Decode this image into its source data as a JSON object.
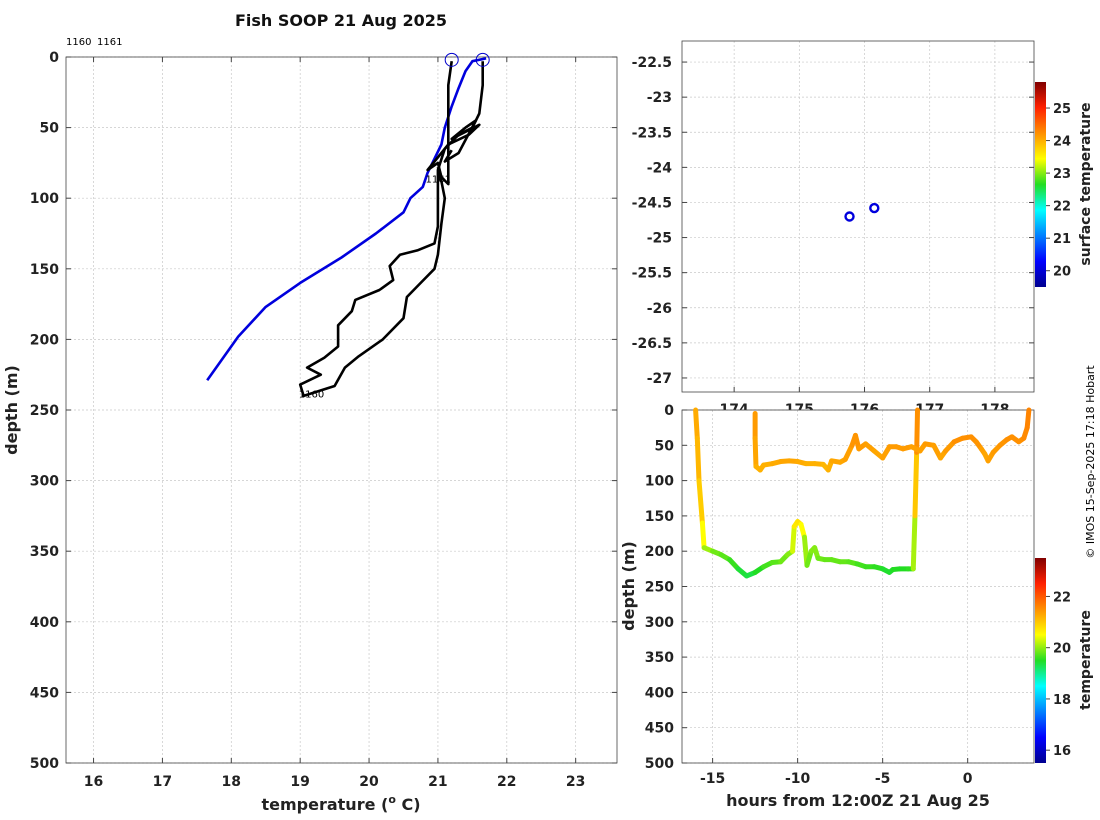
{
  "title": "Fish SOOP 21 Aug 2025",
  "credit": "© IMOS 15-Sep-2025 17:18 Hobart",
  "chart_data": [
    {
      "id": "profiles",
      "type": "line",
      "xlabel": "temperature (°C)",
      "xlabel_main": "temperature (",
      "xlabel_sup": "o",
      "xlabel_tail": " C)",
      "ylabel": "depth (m)",
      "xlim": [
        15.6,
        23.6
      ],
      "ylim": [
        500,
        0
      ],
      "xticks": [
        16,
        17,
        18,
        19,
        20,
        21,
        22,
        23
      ],
      "yticks": [
        0,
        50,
        100,
        150,
        200,
        250,
        300,
        350,
        400,
        450,
        500
      ],
      "top_labels": [
        "1160",
        "1161"
      ],
      "grid": true,
      "series": [
        {
          "id": "ref",
          "color": "#0000dd",
          "points": [
            [
              21.7,
              1
            ],
            [
              21.5,
              3
            ],
            [
              21.4,
              10
            ],
            [
              21.3,
              22
            ],
            [
              21.2,
              35
            ],
            [
              21.1,
              50
            ],
            [
              21.05,
              62
            ],
            [
              20.95,
              72
            ],
            [
              20.85,
              82
            ],
            [
              20.78,
              92
            ],
            [
              20.6,
              100
            ],
            [
              20.5,
              110
            ],
            [
              20.1,
              125
            ],
            [
              19.6,
              142
            ],
            [
              19.0,
              160
            ],
            [
              18.5,
              177
            ],
            [
              18.1,
              198
            ],
            [
              17.65,
              229
            ]
          ]
        },
        {
          "id": "p1160",
          "color": "#000000",
          "label": "1160",
          "points": [
            [
              21.65,
              3
            ],
            [
              21.65,
              20
            ],
            [
              21.6,
              40
            ],
            [
              21.5,
              50
            ],
            [
              21.3,
              55
            ],
            [
              21.1,
              65
            ],
            [
              21.0,
              80
            ],
            [
              21.0,
              100
            ],
            [
              21.0,
              120
            ],
            [
              20.95,
              132
            ],
            [
              20.7,
              137
            ],
            [
              20.45,
              140
            ],
            [
              20.3,
              148
            ],
            [
              20.35,
              158
            ],
            [
              20.15,
              165
            ],
            [
              19.8,
              172
            ],
            [
              19.75,
              180
            ],
            [
              19.55,
              190
            ],
            [
              19.55,
              205
            ],
            [
              19.35,
              213
            ],
            [
              19.1,
              220
            ],
            [
              19.3,
              225
            ],
            [
              19.0,
              232
            ],
            [
              19.05,
              240
            ],
            [
              19.5,
              233
            ],
            [
              19.65,
              220
            ],
            [
              19.85,
              212
            ],
            [
              20.2,
              200
            ],
            [
              20.5,
              185
            ],
            [
              20.55,
              170
            ],
            [
              20.75,
              160
            ],
            [
              20.95,
              150
            ],
            [
              21.0,
              140
            ],
            [
              21.05,
              118
            ],
            [
              21.1,
              100
            ],
            [
              21.05,
              88
            ],
            [
              21.0,
              78
            ]
          ]
        },
        {
          "id": "p1161",
          "color": "#000000",
          "label": "1161",
          "points": [
            [
              21.2,
              3
            ],
            [
              21.15,
              20
            ],
            [
              21.15,
              50
            ],
            [
              21.15,
              70
            ],
            [
              21.15,
              90
            ],
            [
              21.05,
              85
            ],
            [
              21.0,
              75
            ],
            [
              20.85,
              80
            ],
            [
              21.15,
              62
            ],
            [
              21.45,
              55
            ],
            [
              21.6,
              48
            ],
            [
              21.2,
              58
            ],
            [
              21.4,
              50
            ],
            [
              21.55,
              45
            ],
            [
              21.3,
              68
            ],
            [
              21.1,
              74
            ],
            [
              21.2,
              66
            ]
          ]
        }
      ],
      "markers": [
        [
          21.2,
          2
        ],
        [
          21.65,
          2
        ]
      ],
      "end_labels": [
        {
          "text": "1160",
          "x": 18.98,
          "y": 241
        },
        {
          "text": "1161",
          "x": 20.82,
          "y": 89
        }
      ]
    },
    {
      "id": "map",
      "type": "scatter",
      "ylim": [
        -27.2,
        -22.2
      ],
      "yticks": [
        -22.5,
        -23,
        -23.5,
        -24,
        -24.5,
        -25,
        -25.5,
        -26,
        -26.5,
        -27
      ],
      "xlim": [
        173.2,
        178.6
      ],
      "xticks": [
        174,
        175,
        176,
        177,
        178
      ],
      "xtick_labels": [
        "174",
        "175",
        "176",
        "177",
        "178"
      ],
      "points": [
        [
          175.77,
          -24.7
        ],
        [
          176.15,
          -24.58
        ]
      ],
      "point_color": "#0000dd",
      "colorbar_label": "surface temperature",
      "colorbar_ticks": [
        20,
        21,
        22,
        23,
        24,
        25
      ],
      "colorbar_range": [
        19.5,
        25.8
      ],
      "grid": true
    },
    {
      "id": "depth_time",
      "type": "line",
      "xlabel": "hours from 12:00Z 21 Aug 25",
      "ylabel": "depth (m)",
      "xlim": [
        -16.8,
        3.9
      ],
      "ylim": [
        500,
        0
      ],
      "xticks": [
        -15,
        -10,
        -5,
        0
      ],
      "yticks": [
        0,
        50,
        100,
        150,
        200,
        250,
        300,
        350,
        400,
        450,
        500
      ],
      "colorbar_label": "temperature",
      "colorbar_ticks": [
        16,
        18,
        20,
        22
      ],
      "colorbar_range": [
        15.5,
        23.5
      ],
      "grid": true,
      "series": [
        {
          "id": "track1160",
          "points": [
            [
              -16.0,
              0,
              21.3
            ],
            [
              -15.9,
              40,
              21.2
            ],
            [
              -15.8,
              100,
              21.1
            ],
            [
              -15.6,
              160,
              20.8
            ],
            [
              -15.5,
              195,
              20.2
            ],
            [
              -15.0,
              200,
              19.9
            ],
            [
              -14.5,
              205,
              19.8
            ],
            [
              -14.0,
              212,
              19.7
            ],
            [
              -13.5,
              225,
              19.5
            ],
            [
              -13.0,
              235,
              19.3
            ],
            [
              -12.5,
              230,
              19.4
            ],
            [
              -12.0,
              222,
              19.6
            ],
            [
              -11.5,
              216,
              19.7
            ],
            [
              -11.0,
              215,
              19.8
            ],
            [
              -10.6,
              205,
              19.9
            ],
            [
              -10.3,
              200,
              20.0
            ],
            [
              -10.2,
              165,
              20.6
            ],
            [
              -10.0,
              158,
              20.8
            ],
            [
              -9.8,
              162,
              20.7
            ],
            [
              -9.6,
              180,
              20.3
            ],
            [
              -9.45,
              220,
              19.8
            ],
            [
              -9.2,
              200,
              19.9
            ],
            [
              -9.0,
              195,
              20.0
            ],
            [
              -8.8,
              210,
              19.9
            ],
            [
              -8.4,
              212,
              19.8
            ],
            [
              -8.0,
              212,
              19.8
            ],
            [
              -7.5,
              215,
              19.8
            ],
            [
              -7.0,
              215,
              19.8
            ],
            [
              -6.5,
              218,
              19.7
            ],
            [
              -6.0,
              222,
              19.6
            ],
            [
              -5.5,
              222,
              19.6
            ],
            [
              -5.0,
              225,
              19.5
            ],
            [
              -4.6,
              230,
              19.4
            ],
            [
              -4.4,
              226,
              19.5
            ],
            [
              -4.0,
              225,
              19.5
            ],
            [
              -3.5,
              225,
              19.5
            ],
            [
              -3.2,
              225,
              19.6
            ],
            [
              -3.1,
              150,
              20.6
            ],
            [
              -3.0,
              60,
              21.4
            ],
            [
              -2.95,
              0,
              21.6
            ]
          ]
        },
        {
          "id": "track1161",
          "points": [
            [
              -12.5,
              5,
              21.4
            ],
            [
              -12.5,
              40,
              21.4
            ],
            [
              -12.45,
              80,
              21.2
            ],
            [
              -12.2,
              85,
              21.2
            ],
            [
              -12.0,
              78,
              21.2
            ],
            [
              -11.5,
              76,
              21.2
            ],
            [
              -11.0,
              73,
              21.3
            ],
            [
              -10.5,
              72,
              21.3
            ],
            [
              -10.0,
              73,
              21.3
            ],
            [
              -9.5,
              76,
              21.2
            ],
            [
              -9.0,
              76,
              21.2
            ],
            [
              -8.5,
              77,
              21.2
            ],
            [
              -8.2,
              85,
              21.1
            ],
            [
              -8.0,
              72,
              21.3
            ],
            [
              -7.5,
              74,
              21.3
            ],
            [
              -7.2,
              70,
              21.3
            ],
            [
              -6.8,
              50,
              21.4
            ],
            [
              -6.6,
              36,
              21.5
            ],
            [
              -6.4,
              55,
              21.4
            ],
            [
              -6.0,
              48,
              21.4
            ],
            [
              -5.5,
              58,
              21.3
            ],
            [
              -5.0,
              68,
              21.3
            ],
            [
              -4.6,
              52,
              21.4
            ],
            [
              -4.2,
              52,
              21.4
            ],
            [
              -3.8,
              55,
              21.4
            ],
            [
              -3.3,
              52,
              21.4
            ],
            [
              -2.8,
              58,
              21.3
            ],
            [
              -2.5,
              48,
              21.4
            ],
            [
              -2.0,
              50,
              21.4
            ],
            [
              -1.6,
              68,
              21.3
            ],
            [
              -1.3,
              58,
              21.3
            ],
            [
              -0.8,
              45,
              21.5
            ],
            [
              -0.3,
              40,
              21.5
            ],
            [
              0.2,
              38,
              21.5
            ],
            [
              0.5,
              45,
              21.5
            ],
            [
              0.8,
              55,
              21.4
            ],
            [
              1.0,
              62,
              21.3
            ],
            [
              1.2,
              72,
              21.3
            ],
            [
              1.5,
              60,
              21.4
            ],
            [
              1.9,
              50,
              21.4
            ],
            [
              2.3,
              42,
              21.5
            ],
            [
              2.6,
              38,
              21.5
            ],
            [
              3.0,
              45,
              21.5
            ],
            [
              3.3,
              40,
              21.5
            ],
            [
              3.5,
              25,
              21.6
            ],
            [
              3.6,
              0,
              21.6
            ]
          ]
        }
      ]
    }
  ]
}
